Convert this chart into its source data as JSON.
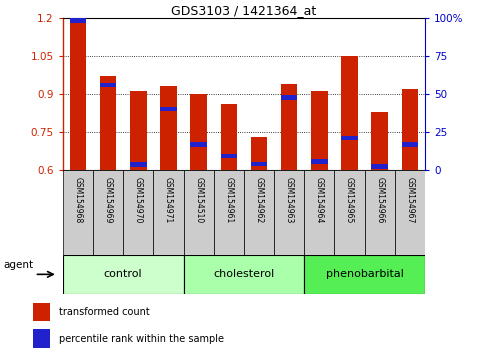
{
  "title": "GDS3103 / 1421364_at",
  "samples": [
    "GSM154968",
    "GSM154969",
    "GSM154970",
    "GSM154971",
    "GSM154510",
    "GSM154961",
    "GSM154962",
    "GSM154963",
    "GSM154964",
    "GSM154965",
    "GSM154966",
    "GSM154967"
  ],
  "red_values": [
    1.2,
    0.97,
    0.91,
    0.93,
    0.9,
    0.86,
    0.73,
    0.94,
    0.91,
    1.05,
    0.83,
    0.92
  ],
  "blue_values_left": [
    1.19,
    0.935,
    0.622,
    0.84,
    0.7,
    0.655,
    0.623,
    0.885,
    0.633,
    0.725,
    0.613,
    0.7
  ],
  "ylim_left": [
    0.6,
    1.2
  ],
  "ylim_right": [
    0,
    100
  ],
  "yticks_left": [
    0.6,
    0.75,
    0.9,
    1.05,
    1.2
  ],
  "yticks_right": [
    0,
    25,
    50,
    75,
    100
  ],
  "ytick_labels_right": [
    "0",
    "25",
    "50",
    "75",
    "100%"
  ],
  "bar_width": 0.55,
  "bar_color_red": "#CC2200",
  "bar_color_blue": "#2222CC",
  "groups": [
    {
      "label": "control",
      "indices": [
        0,
        1,
        2,
        3
      ],
      "color": "#CCFFCC"
    },
    {
      "label": "cholesterol",
      "indices": [
        4,
        5,
        6,
        7
      ],
      "color": "#AAFFAA"
    },
    {
      "label": "phenobarbital",
      "indices": [
        8,
        9,
        10,
        11
      ],
      "color": "#55EE55"
    }
  ],
  "agent_label": "agent",
  "legend_red": "transformed count",
  "legend_blue": "percentile rank within the sample",
  "bg_color": "#FFFFFF",
  "tick_label_area_color": "#CCCCCC",
  "left_axis_color": "#CC2200",
  "right_axis_color": "#0000CC"
}
